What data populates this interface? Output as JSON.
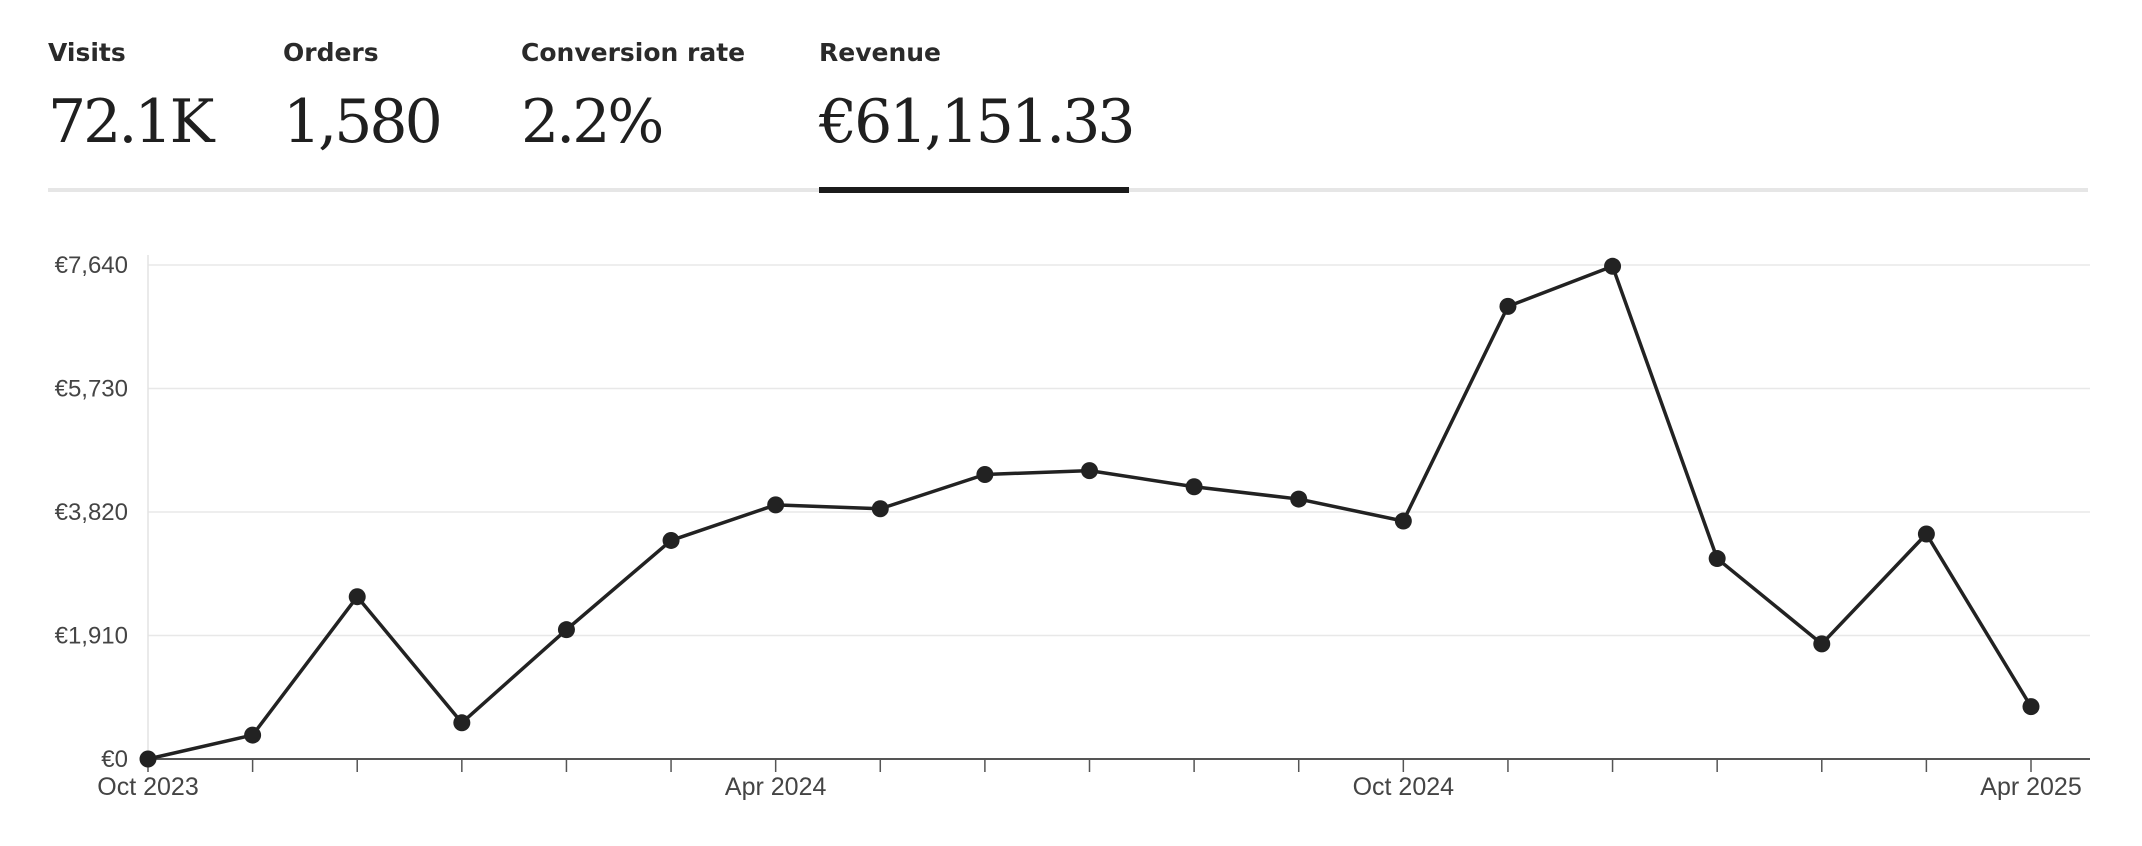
{
  "metrics": [
    {
      "label": "Visits",
      "value": "72.1K"
    },
    {
      "label": "Orders",
      "value": "1,580"
    },
    {
      "label": "Conversion rate",
      "value": "2.2%"
    },
    {
      "label": "Revenue",
      "value": "€61,151.33"
    }
  ],
  "active_metric": "Revenue",
  "chart_data": {
    "type": "line",
    "title": "",
    "xlabel": "",
    "ylabel": "",
    "x": [
      "Oct 2023",
      "Nov 2023",
      "Dec 2023",
      "Jan 2024",
      "Feb 2024",
      "Mar 2024",
      "Apr 2024",
      "May 2024",
      "Jun 2024",
      "Jul 2024",
      "Aug 2024",
      "Sep 2024",
      "Oct 2024",
      "Nov 2024",
      "Dec 2024",
      "Jan 2025",
      "Feb 2025",
      "Mar 2025",
      "Apr 2025"
    ],
    "x_tick_labels": [
      "Oct 2023",
      "Apr 2024",
      "Oct 2024",
      "Apr 2025"
    ],
    "y_tick_labels": [
      "€0",
      "€1,910",
      "€3,820",
      "€5,730",
      "€7,640"
    ],
    "y_ticks": [
      0,
      1910,
      3820,
      5730,
      7640
    ],
    "ylim": [
      0,
      7640
    ],
    "series": [
      {
        "values": [
          0,
          370,
          2510,
          560,
          2000,
          3380,
          3930,
          3870,
          4400,
          4460,
          4210,
          4020,
          3680,
          7000,
          7620,
          3100,
          1780,
          3480,
          810
        ]
      }
    ],
    "line_color": "#222222",
    "grid": true
  }
}
